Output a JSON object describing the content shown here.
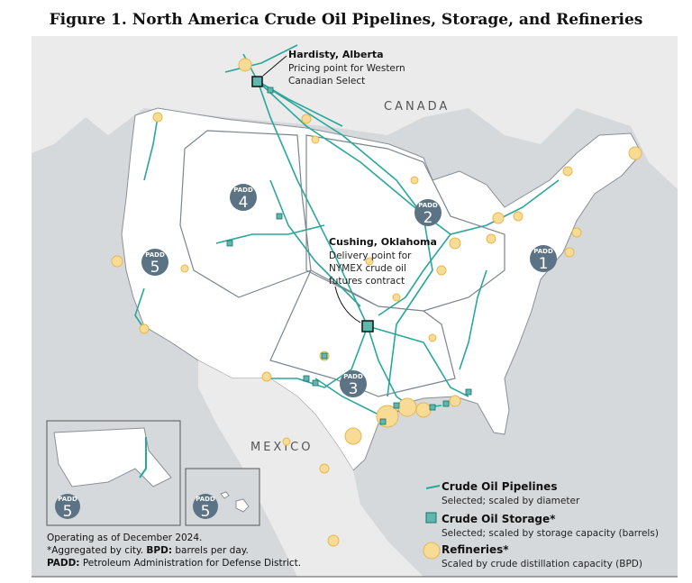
{
  "title": "Figure 1. North America Crude Oil Pipelines, Storage, and Refineries",
  "map": {
    "country_labels": [
      "CANADA",
      "MEXICO"
    ],
    "callouts": [
      {
        "title": "Hardisty, Alberta",
        "lines": [
          "Pricing point for Western",
          "Canadian Select"
        ]
      },
      {
        "title": "Cushing, Oklahoma",
        "lines": [
          "Delivery point for",
          "NYMEX crude oil",
          "futures contract"
        ]
      }
    ],
    "padds": [
      {
        "label": "PADD",
        "number": "4"
      },
      {
        "label": "PADD",
        "number": "2"
      },
      {
        "label": "PADD",
        "number": "5"
      },
      {
        "label": "PADD",
        "number": "1"
      },
      {
        "label": "PADD",
        "number": "3"
      },
      {
        "label": "PADD",
        "number": "5"
      },
      {
        "label": "PADD",
        "number": "5"
      }
    ]
  },
  "legend": {
    "items": [
      {
        "title": "Crude Oil Pipelines",
        "subtitle": "Selected; scaled by diameter"
      },
      {
        "title": "Crude Oil Storage*",
        "subtitle": "Selected; scaled by storage capacity (barrels)"
      },
      {
        "title": "Refineries*",
        "subtitle": "Scaled by crude distillation capacity (BPD)"
      }
    ]
  },
  "notes": {
    "line1": "Operating as of December 2024.",
    "line2": [
      "*Aggregated by city. ",
      "BPD:",
      " barrels per day."
    ],
    "line3": [
      "PADD:",
      " Petroleum Administration for Defense District."
    ]
  }
}
